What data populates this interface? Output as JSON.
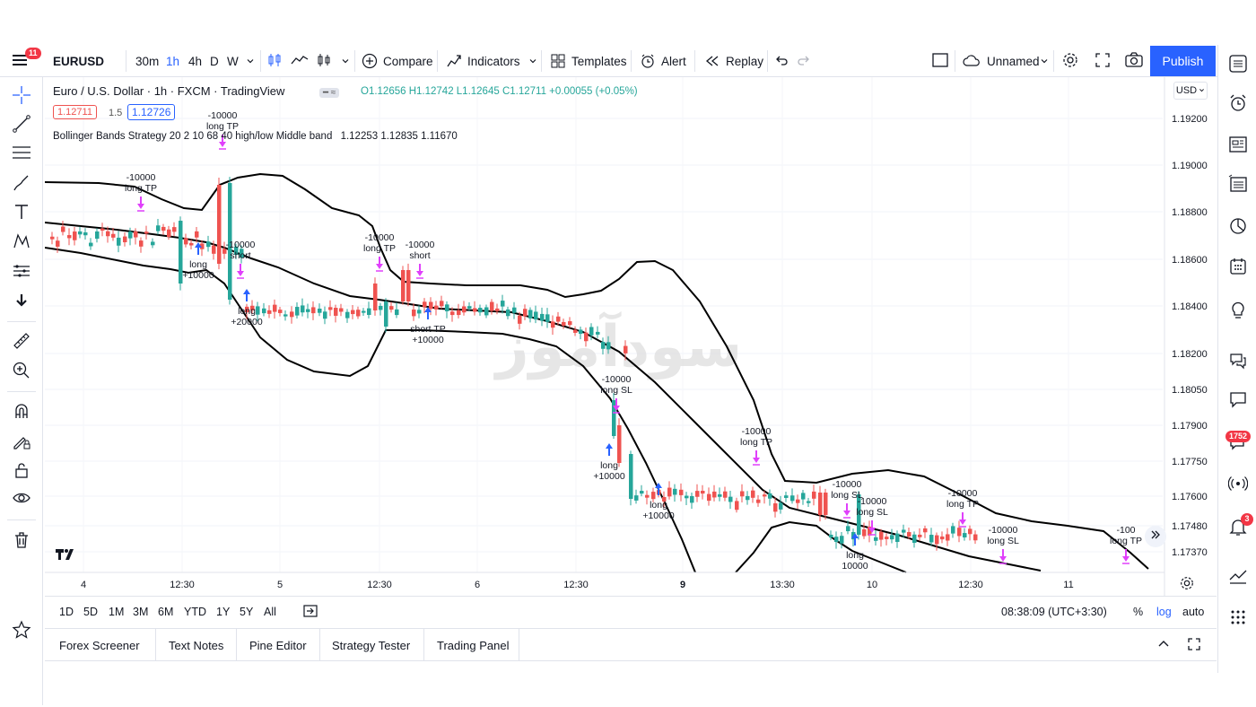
{
  "topbar": {
    "notification_count": "11",
    "symbol": "EURUSD",
    "intervals": [
      "30m",
      "1h",
      "4h",
      "D",
      "W"
    ],
    "active_interval": "1h",
    "compare_label": "Compare",
    "indicators_label": "Indicators",
    "templates_label": "Templates",
    "alert_label": "Alert",
    "replay_label": "Replay",
    "layout_name": "Unnamed",
    "publish_label": "Publish"
  },
  "legend": {
    "title": "Euro / U.S. Dollar · 1h · FXCM · TradingView",
    "ohlc": "O1.12656 H1.12742 L1.12645 C1.12711 +0.00055 (+0.05%)",
    "bid": "1.12711",
    "spread": "1.5",
    "ask": "1.12726",
    "indicator_name": "Bollinger Bands Strategy 20 2 10 68 40 high/low Middle band",
    "indicator_values": "1.12253 1.12835 1.11670"
  },
  "price_axis": {
    "currency": "USD",
    "ticks": [
      "1.19200",
      "1.19000",
      "1.18800",
      "1.18600",
      "1.18400",
      "1.18200",
      "1.18050",
      "1.17900",
      "1.17750",
      "1.17600",
      "1.17480",
      "1.17370"
    ]
  },
  "time_axis": {
    "ticks": [
      "4",
      "12:30",
      "5",
      "12:30",
      "6",
      "12:30",
      "9",
      "13:30",
      "10",
      "12:30",
      "11"
    ]
  },
  "trade_labels": [
    {
      "text1": "-10000",
      "text2": "long TP",
      "dir": "down"
    },
    {
      "text1": "-10000",
      "text2": "long TP",
      "dir": "down"
    },
    {
      "text1": "-10000",
      "text2": "short",
      "dir": "down"
    },
    {
      "text1": "long",
      "text2": "+10000",
      "dir": "up"
    },
    {
      "text1": "long",
      "text2": "+20000",
      "dir": "up"
    },
    {
      "text1": "-10000",
      "text2": "long TP",
      "dir": "down"
    },
    {
      "text1": "-10000",
      "text2": "short",
      "dir": "down"
    },
    {
      "text1": "short TP",
      "text2": "+10000",
      "dir": "up"
    },
    {
      "text1": "-10000",
      "text2": "long SL",
      "dir": "down"
    },
    {
      "text1": "long",
      "text2": "+10000",
      "dir": "up"
    },
    {
      "text1": "long",
      "text2": "+10000",
      "dir": "up"
    },
    {
      "text1": "-10000",
      "text2": "long TP",
      "dir": "down"
    },
    {
      "text1": "-10000",
      "text2": "long SL",
      "dir": "down"
    },
    {
      "text1": "-10000",
      "text2": "long SL",
      "dir": "down"
    },
    {
      "text1": "-10000",
      "text2": "long TP",
      "dir": "down"
    },
    {
      "text1": "-10000",
      "text2": "long SL",
      "dir": "down"
    },
    {
      "text1": "-100",
      "text2": "long TP",
      "dir": "down"
    },
    {
      "text1": "long",
      "text2": "10000",
      "dir": "up"
    }
  ],
  "watermark": "سودآموز",
  "range_bar": {
    "ranges": [
      "1D",
      "5D",
      "1M",
      "3M",
      "6M",
      "YTD",
      "1Y",
      "5Y",
      "All"
    ],
    "clock": "08:38:09 (UTC+3:30)",
    "percent": "%",
    "log": "log",
    "auto": "auto"
  },
  "bottom_tabs": [
    "Forex Screener",
    "Text Notes",
    "Pine Editor",
    "Strategy Tester",
    "Trading Panel"
  ],
  "right_badges": {
    "chat": "1752",
    "notifications": "3"
  },
  "colors": {
    "up": "#26a69a",
    "down": "#ef5350",
    "accent": "#2962ff",
    "signal": "#e040fb",
    "band": "#000000"
  }
}
